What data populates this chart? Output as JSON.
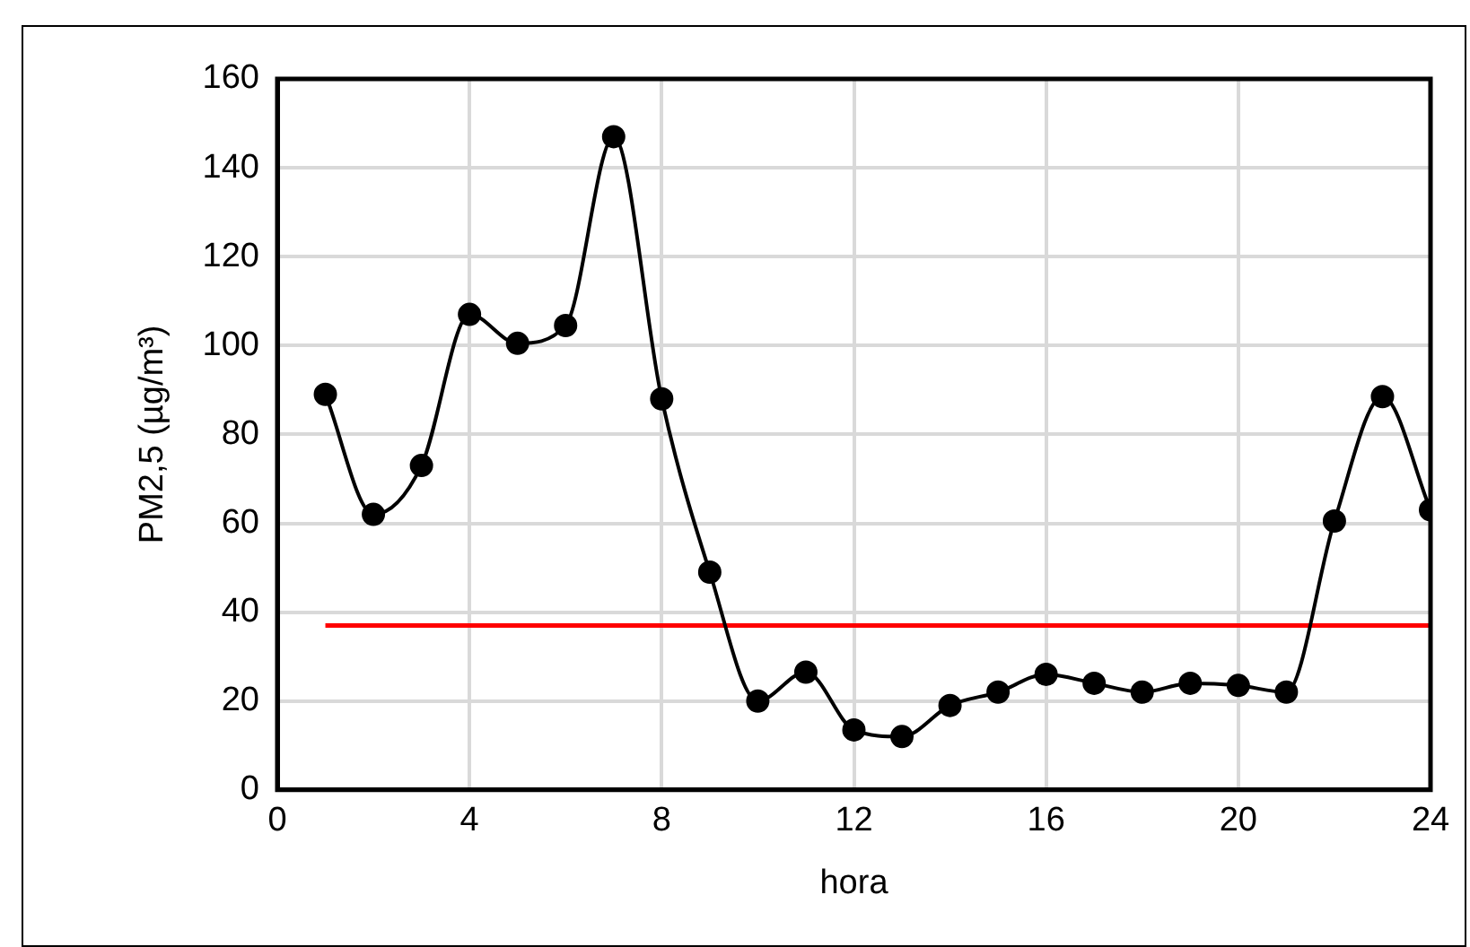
{
  "chart_data": {
    "type": "line",
    "xlabel": "hora",
    "ylabel": "PM2,5 (µg/m³)",
    "x": [
      1,
      2,
      3,
      4,
      5,
      6,
      7,
      8,
      9,
      10,
      11,
      12,
      13,
      14,
      15,
      16,
      17,
      18,
      19,
      20,
      21,
      22,
      23,
      24
    ],
    "series": [
      {
        "color": "#000000",
        "marker": "circle",
        "values": [
          89,
          62,
          73,
          107,
          100.5,
          104.5,
          147,
          88,
          49,
          20,
          26.5,
          13.5,
          12,
          19,
          22,
          26,
          24,
          22,
          24,
          23.5,
          22,
          60.5,
          88.5,
          63
        ]
      },
      {
        "color": "#ff0000",
        "marker": "none",
        "x": [
          1,
          24
        ],
        "values": [
          37,
          37
        ]
      }
    ],
    "xlim": [
      0,
      24
    ],
    "xticks": [
      0,
      4,
      8,
      12,
      16,
      20,
      24
    ],
    "ylim": [
      0,
      160
    ],
    "yticks": [
      0,
      20,
      40,
      60,
      80,
      100,
      120,
      140,
      160
    ],
    "grid": true,
    "legend": false
  }
}
